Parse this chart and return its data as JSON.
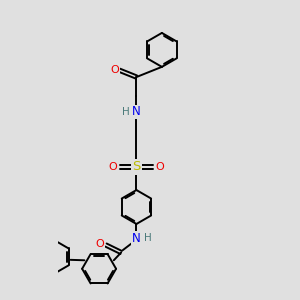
{
  "bg_color": "#e0e0e0",
  "atom_colors": {
    "C": "#000000",
    "H": "#4a7a7a",
    "N": "#0000ee",
    "O": "#ee0000",
    "S": "#bbbb00"
  },
  "bond_color": "#000000",
  "bond_width": 1.4,
  "figsize": [
    3.0,
    3.0
  ],
  "dpi": 100
}
